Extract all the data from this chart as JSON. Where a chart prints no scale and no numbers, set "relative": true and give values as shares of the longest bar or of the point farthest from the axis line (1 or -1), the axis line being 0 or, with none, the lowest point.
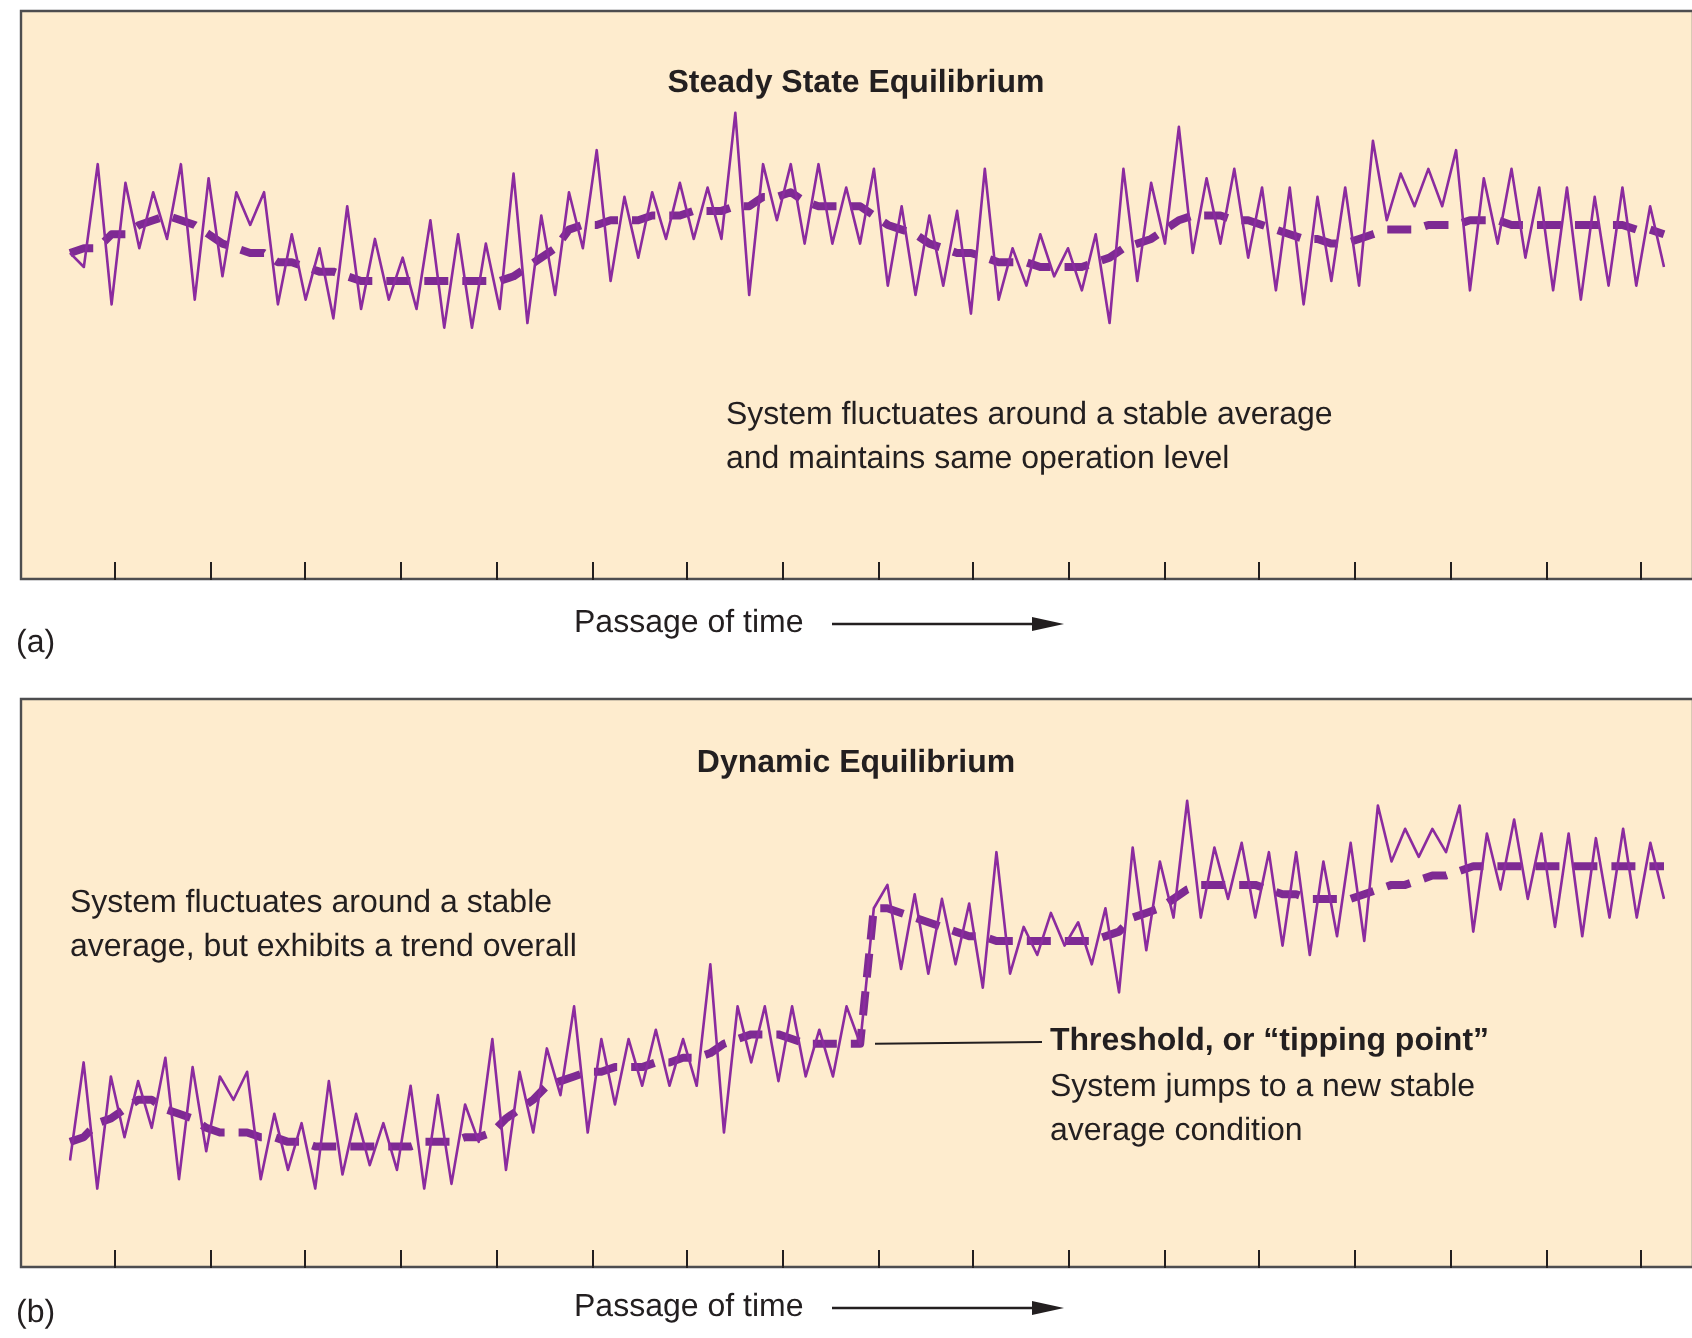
{
  "chart_data": [
    {
      "type": "line",
      "title": "Steady State Equilibrium",
      "xlabel": "Passage of time",
      "relative": true,
      "tick_labels": false,
      "annotations": [
        "System fluctuates around a stable average\nand maintains same operation level",
        "(a)"
      ],
      "categories": [
        null,
        null,
        null,
        null,
        null,
        null,
        null,
        null,
        null,
        null,
        null,
        null,
        null,
        null,
        null,
        null,
        null,
        null,
        null,
        null,
        null,
        null,
        null,
        null,
        null,
        null,
        null,
        null,
        null,
        null,
        null,
        null,
        null,
        null,
        null,
        null,
        null,
        null,
        null,
        null,
        null,
        null,
        null,
        null,
        null,
        null,
        null,
        null,
        null,
        null,
        null,
        null,
        null,
        null,
        null,
        null,
        null,
        null,
        null,
        null,
        null,
        null,
        null,
        null,
        null,
        null,
        null,
        null,
        null,
        null,
        null,
        null,
        null,
        null,
        null,
        null,
        null,
        null,
        null,
        null,
        null,
        null,
        null,
        null,
        null,
        null,
        null,
        null,
        null,
        null,
        null,
        null,
        null,
        null,
        null,
        null,
        null,
        null,
        null,
        null,
        null,
        null,
        null,
        null,
        null,
        null,
        null,
        null,
        null,
        null,
        null,
        null,
        null,
        null,
        null,
        null
      ],
      "series": [
        {
          "color": "#8b2b9f",
          "line_style": "solid",
          "values": [
            0.7,
            0.67,
            0.89,
            0.59,
            0.85,
            0.71,
            0.83,
            0.73,
            0.89,
            0.6,
            0.86,
            0.65,
            0.83,
            0.76,
            0.83,
            0.59,
            0.74,
            0.6,
            0.71,
            0.56,
            0.8,
            0.58,
            0.73,
            0.6,
            0.69,
            0.58,
            0.77,
            0.54,
            0.74,
            0.54,
            0.72,
            0.58,
            0.87,
            0.55,
            0.78,
            0.61,
            0.83,
            0.71,
            0.92,
            0.64,
            0.82,
            0.69,
            0.83,
            0.73,
            0.85,
            0.73,
            0.84,
            0.73,
            1.0,
            0.61,
            0.89,
            0.77,
            0.89,
            0.72,
            0.89,
            0.72,
            0.84,
            0.72,
            0.88,
            0.63,
            0.8,
            0.61,
            0.78,
            0.63,
            0.79,
            0.57,
            0.88,
            0.6,
            0.71,
            0.63,
            0.74,
            0.65,
            0.71,
            0.62,
            0.74,
            0.55,
            0.88,
            0.64,
            0.85,
            0.72,
            0.97,
            0.7,
            0.86,
            0.72,
            0.88,
            0.69,
            0.84,
            0.62,
            0.84,
            0.59,
            0.82,
            0.64,
            0.84,
            0.63,
            0.94,
            0.77,
            0.87,
            0.8,
            0.88,
            0.8,
            0.92,
            0.62,
            0.86,
            0.72,
            0.88,
            0.69,
            0.84,
            0.62,
            0.84,
            0.6,
            0.82,
            0.63,
            0.84,
            0.63,
            0.8,
            0.67
          ]
        },
        {
          "color": "#7e2a93",
          "line_style": "dashed",
          "values": [
            0.7,
            0.71,
            0.71,
            0.74,
            0.74,
            0.76,
            0.77,
            0.78,
            0.77,
            0.76,
            0.74,
            0.72,
            0.71,
            0.7,
            0.7,
            0.68,
            0.68,
            0.67,
            0.66,
            0.66,
            0.65,
            0.64,
            0.64,
            0.64,
            0.64,
            0.64,
            0.64,
            0.64,
            0.64,
            0.64,
            0.64,
            0.64,
            0.65,
            0.67,
            0.69,
            0.71,
            0.75,
            0.76,
            0.76,
            0.77,
            0.77,
            0.77,
            0.78,
            0.78,
            0.78,
            0.79,
            0.79,
            0.79,
            0.8,
            0.8,
            0.82,
            0.82,
            0.83,
            0.81,
            0.8,
            0.8,
            0.8,
            0.8,
            0.78,
            0.76,
            0.75,
            0.74,
            0.72,
            0.71,
            0.7,
            0.7,
            0.69,
            0.68,
            0.68,
            0.68,
            0.67,
            0.67,
            0.67,
            0.67,
            0.68,
            0.69,
            0.71,
            0.72,
            0.73,
            0.75,
            0.77,
            0.78,
            0.78,
            0.78,
            0.77,
            0.77,
            0.76,
            0.75,
            0.74,
            0.73,
            0.73,
            0.72,
            0.72,
            0.73,
            0.74,
            0.75,
            0.75,
            0.75,
            0.76,
            0.76,
            0.76,
            0.77,
            0.77,
            0.77,
            0.76,
            0.76,
            0.76,
            0.76,
            0.76,
            0.76,
            0.76,
            0.76,
            0.76,
            0.75,
            0.75,
            0.74
          ]
        }
      ]
    },
    {
      "type": "line",
      "title": "Dynamic Equilibrium",
      "xlabel": "Passage of time",
      "relative": true,
      "tick_labels": false,
      "annotations": [
        "System fluctuates around a stable\naverage, but exhibits a trend overall",
        "Threshold, or “tipping point”",
        "System jumps to a new stable\naverage condition",
        "(b)"
      ],
      "categories": [
        null,
        null,
        null,
        null,
        null,
        null,
        null,
        null,
        null,
        null,
        null,
        null,
        null,
        null,
        null,
        null,
        null,
        null,
        null,
        null,
        null,
        null,
        null,
        null,
        null,
        null,
        null,
        null,
        null,
        null,
        null,
        null,
        null,
        null,
        null,
        null,
        null,
        null,
        null,
        null,
        null,
        null,
        null,
        null,
        null,
        null,
        null,
        null,
        null,
        null,
        null,
        null,
        null,
        null,
        null,
        null,
        null,
        null,
        null,
        null,
        null,
        null,
        null,
        null,
        null,
        null,
        null,
        null,
        null,
        null,
        null,
        null,
        null,
        null,
        null,
        null,
        null,
        null,
        null,
        null,
        null,
        null,
        null,
        null,
        null,
        null,
        null,
        null,
        null,
        null,
        null,
        null,
        null,
        null,
        null,
        null,
        null,
        null,
        null,
        null,
        null,
        null,
        null,
        null,
        null,
        null,
        null,
        null,
        null,
        null,
        null,
        null,
        null,
        null,
        null,
        null,
        null,
        null
      ],
      "series": [
        {
          "color": "#8b2b9f",
          "line_style": "solid",
          "values": [
            0.23,
            0.44,
            0.17,
            0.41,
            0.28,
            0.4,
            0.3,
            0.45,
            0.19,
            0.43,
            0.25,
            0.41,
            0.36,
            0.42,
            0.19,
            0.33,
            0.21,
            0.31,
            0.17,
            0.4,
            0.2,
            0.33,
            0.22,
            0.31,
            0.21,
            0.39,
            0.17,
            0.37,
            0.18,
            0.35,
            0.27,
            0.49,
            0.21,
            0.42,
            0.29,
            0.47,
            0.37,
            0.56,
            0.29,
            0.49,
            0.35,
            0.49,
            0.39,
            0.51,
            0.39,
            0.49,
            0.39,
            0.65,
            0.29,
            0.56,
            0.44,
            0.56,
            0.4,
            0.56,
            0.41,
            0.51,
            0.41,
            0.56,
            0.48,
            0.77,
            0.82,
            0.64,
            0.8,
            0.63,
            0.79,
            0.65,
            0.78,
            0.6,
            0.89,
            0.63,
            0.73,
            0.67,
            0.76,
            0.69,
            0.74,
            0.65,
            0.77,
            0.59,
            0.9,
            0.68,
            0.87,
            0.75,
            1.0,
            0.75,
            0.9,
            0.79,
            0.91,
            0.75,
            0.89,
            0.69,
            0.89,
            0.67,
            0.87,
            0.71,
            0.91,
            0.7,
            0.99,
            0.87,
            0.94,
            0.88,
            0.94,
            0.89,
            0.99,
            0.72,
            0.93,
            0.81,
            0.96,
            0.79,
            0.93,
            0.73,
            0.93,
            0.71,
            0.92,
            0.75,
            0.94,
            0.75,
            0.91,
            0.79
          ]
        },
        {
          "color": "#7e2a93",
          "line_style": "dashed",
          "values": [
            0.27,
            0.28,
            0.31,
            0.32,
            0.34,
            0.36,
            0.36,
            0.34,
            0.33,
            0.32,
            0.3,
            0.29,
            0.29,
            0.29,
            0.28,
            0.28,
            0.27,
            0.27,
            0.26,
            0.26,
            0.26,
            0.26,
            0.26,
            0.26,
            0.26,
            0.26,
            0.27,
            0.27,
            0.27,
            0.28,
            0.28,
            0.29,
            0.32,
            0.34,
            0.36,
            0.39,
            0.4,
            0.41,
            0.42,
            0.42,
            0.43,
            0.43,
            0.43,
            0.44,
            0.44,
            0.45,
            0.45,
            0.46,
            0.48,
            0.49,
            0.5,
            0.5,
            0.5,
            0.49,
            0.48,
            0.48,
            0.48,
            0.48,
            0.48,
            0.77,
            0.77,
            0.76,
            0.75,
            0.74,
            0.73,
            0.72,
            0.71,
            0.71,
            0.7,
            0.7,
            0.7,
            0.7,
            0.7,
            0.7,
            0.7,
            0.7,
            0.71,
            0.72,
            0.75,
            0.76,
            0.77,
            0.79,
            0.81,
            0.82,
            0.82,
            0.82,
            0.82,
            0.82,
            0.81,
            0.8,
            0.8,
            0.79,
            0.79,
            0.79,
            0.79,
            0.8,
            0.81,
            0.82,
            0.82,
            0.83,
            0.84,
            0.84,
            0.85,
            0.86,
            0.86,
            0.86,
            0.86,
            0.86,
            0.86,
            0.86,
            0.86,
            0.86,
            0.86,
            0.86,
            0.86,
            0.86,
            0.86,
            0.86
          ]
        }
      ]
    }
  ]
}
